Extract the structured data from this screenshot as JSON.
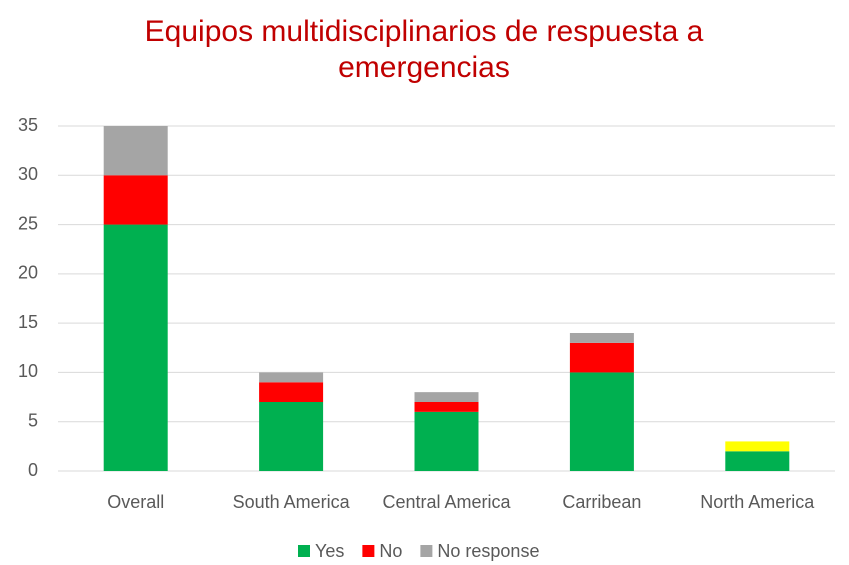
{
  "chart_data": {
    "type": "stacked_bar",
    "title": "Equipos multidisciplinarios de respuesta a emergencias",
    "categories": [
      "Overall",
      "South America",
      "Central America",
      "Carribean",
      "North America"
    ],
    "series": [
      {
        "name": "Yes",
        "color": "#00b050",
        "values": [
          25,
          7,
          6,
          10,
          2
        ]
      },
      {
        "name": "No",
        "color": "#ff0000",
        "values": [
          5,
          2,
          1,
          3,
          0
        ]
      },
      {
        "name": "No response",
        "color": "#a5a5a5",
        "colors": [
          "#a5a5a5",
          "#a5a5a5",
          "#a5a5a5",
          "#a5a5a5",
          "#ffff00"
        ],
        "values": [
          5,
          1,
          1,
          1,
          1
        ]
      }
    ],
    "ylim": [
      0,
      35
    ],
    "yticks": [
      0,
      5,
      10,
      15,
      20,
      25,
      30,
      35
    ],
    "grid": true,
    "legend": "bottom"
  }
}
